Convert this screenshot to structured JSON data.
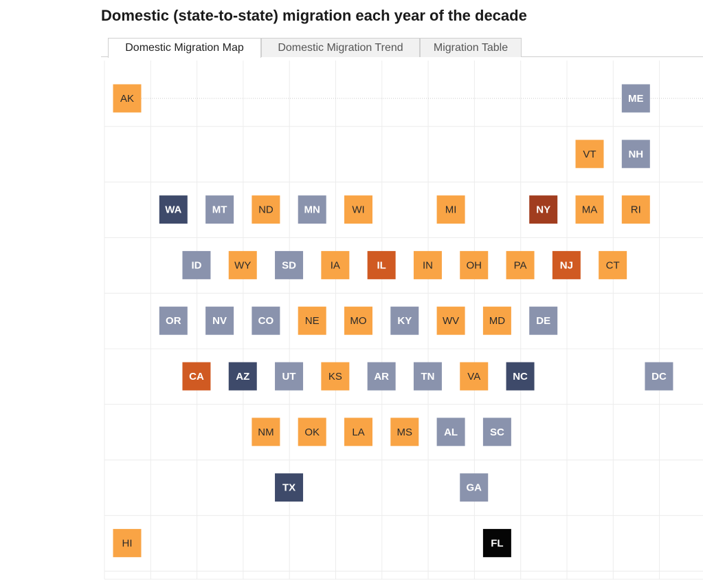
{
  "title": "Domestic (state-to-state) migration each year of the decade",
  "tabs": [
    {
      "label": "Domestic Migration Map",
      "active": true
    },
    {
      "label": "Domestic Migration Trend",
      "active": false
    },
    {
      "label": "Migration Table",
      "active": false
    }
  ],
  "colors": {
    "gain_light": "#f9a445",
    "gain_medium": "#d05a22",
    "gain_strong": "#a13d1f",
    "loss_light": "#8a93ad",
    "loss_strong": "#3e4a6a",
    "loss_extreme": "#050505",
    "grid": "#ececec",
    "text_dark": "#2a2a2a",
    "text_light": "#ffffff"
  },
  "states": [
    {
      "abbr": "AK",
      "col": 0,
      "row": 0,
      "color": "gain_light"
    },
    {
      "abbr": "ME",
      "col": 11,
      "row": 0,
      "color": "loss_light"
    },
    {
      "abbr": "VT",
      "col": 10,
      "row": 1,
      "color": "gain_light"
    },
    {
      "abbr": "NH",
      "col": 11,
      "row": 1,
      "color": "loss_light"
    },
    {
      "abbr": "WA",
      "col": 1,
      "row": 2,
      "color": "loss_strong"
    },
    {
      "abbr": "MT",
      "col": 2,
      "row": 2,
      "color": "loss_light"
    },
    {
      "abbr": "ND",
      "col": 3,
      "row": 2,
      "color": "gain_light"
    },
    {
      "abbr": "MN",
      "col": 4,
      "row": 2,
      "color": "loss_light"
    },
    {
      "abbr": "WI",
      "col": 5,
      "row": 2,
      "color": "gain_light"
    },
    {
      "abbr": "MI",
      "col": 7,
      "row": 2,
      "color": "gain_light"
    },
    {
      "abbr": "NY",
      "col": 9,
      "row": 2,
      "color": "gain_strong"
    },
    {
      "abbr": "MA",
      "col": 10,
      "row": 2,
      "color": "gain_light"
    },
    {
      "abbr": "RI",
      "col": 11,
      "row": 2,
      "color": "gain_light"
    },
    {
      "abbr": "ID",
      "col": 1.5,
      "row": 3,
      "color": "loss_light"
    },
    {
      "abbr": "WY",
      "col": 2.5,
      "row": 3,
      "color": "gain_light"
    },
    {
      "abbr": "SD",
      "col": 3.5,
      "row": 3,
      "color": "loss_light"
    },
    {
      "abbr": "IA",
      "col": 4.5,
      "row": 3,
      "color": "gain_light"
    },
    {
      "abbr": "IL",
      "col": 5.5,
      "row": 3,
      "color": "gain_medium"
    },
    {
      "abbr": "IN",
      "col": 6.5,
      "row": 3,
      "color": "gain_light"
    },
    {
      "abbr": "OH",
      "col": 7.5,
      "row": 3,
      "color": "gain_light"
    },
    {
      "abbr": "PA",
      "col": 8.5,
      "row": 3,
      "color": "gain_light"
    },
    {
      "abbr": "NJ",
      "col": 9.5,
      "row": 3,
      "color": "gain_medium"
    },
    {
      "abbr": "CT",
      "col": 10.5,
      "row": 3,
      "color": "gain_light"
    },
    {
      "abbr": "OR",
      "col": 1,
      "row": 4,
      "color": "loss_light"
    },
    {
      "abbr": "NV",
      "col": 2,
      "row": 4,
      "color": "loss_light"
    },
    {
      "abbr": "CO",
      "col": 3,
      "row": 4,
      "color": "loss_light"
    },
    {
      "abbr": "NE",
      "col": 4,
      "row": 4,
      "color": "gain_light"
    },
    {
      "abbr": "MO",
      "col": 5,
      "row": 4,
      "color": "gain_light"
    },
    {
      "abbr": "KY",
      "col": 6,
      "row": 4,
      "color": "loss_light"
    },
    {
      "abbr": "WV",
      "col": 7,
      "row": 4,
      "color": "gain_light"
    },
    {
      "abbr": "MD",
      "col": 8,
      "row": 4,
      "color": "gain_light"
    },
    {
      "abbr": "DE",
      "col": 9,
      "row": 4,
      "color": "loss_light"
    },
    {
      "abbr": "CA",
      "col": 1.5,
      "row": 5,
      "color": "gain_medium"
    },
    {
      "abbr": "AZ",
      "col": 2.5,
      "row": 5,
      "color": "loss_strong"
    },
    {
      "abbr": "UT",
      "col": 3.5,
      "row": 5,
      "color": "loss_light"
    },
    {
      "abbr": "KS",
      "col": 4.5,
      "row": 5,
      "color": "gain_light"
    },
    {
      "abbr": "AR",
      "col": 5.5,
      "row": 5,
      "color": "loss_light"
    },
    {
      "abbr": "TN",
      "col": 6.5,
      "row": 5,
      "color": "loss_light"
    },
    {
      "abbr": "VA",
      "col": 7.5,
      "row": 5,
      "color": "gain_light"
    },
    {
      "abbr": "NC",
      "col": 8.5,
      "row": 5,
      "color": "loss_strong"
    },
    {
      "abbr": "DC",
      "col": 11.5,
      "row": 5,
      "color": "loss_light"
    },
    {
      "abbr": "NM",
      "col": 3,
      "row": 6,
      "color": "gain_light"
    },
    {
      "abbr": "OK",
      "col": 4,
      "row": 6,
      "color": "gain_light"
    },
    {
      "abbr": "LA",
      "col": 5,
      "row": 6,
      "color": "gain_light"
    },
    {
      "abbr": "MS",
      "col": 6,
      "row": 6,
      "color": "gain_light"
    },
    {
      "abbr": "AL",
      "col": 7,
      "row": 6,
      "color": "loss_light"
    },
    {
      "abbr": "SC",
      "col": 8,
      "row": 6,
      "color": "loss_light"
    },
    {
      "abbr": "TX",
      "col": 3.5,
      "row": 7,
      "color": "loss_strong"
    },
    {
      "abbr": "GA",
      "col": 7.5,
      "row": 7,
      "color": "loss_light"
    },
    {
      "abbr": "HI",
      "col": 0,
      "row": 8,
      "color": "gain_light"
    },
    {
      "abbr": "FL",
      "col": 8,
      "row": 8,
      "color": "loss_extreme"
    }
  ]
}
